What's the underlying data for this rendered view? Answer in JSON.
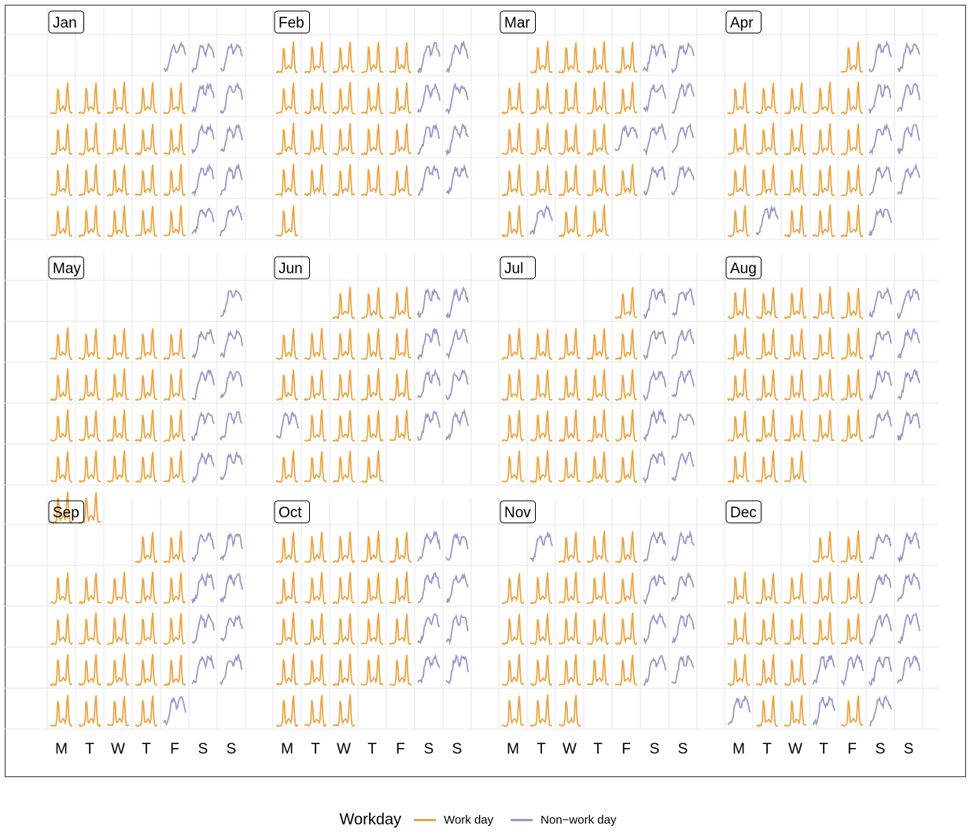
{
  "chart_data": {
    "type": "line",
    "title": "",
    "xlabel": "",
    "ylabel": "",
    "weekday_labels": [
      "M",
      "T",
      "W",
      "T",
      "F",
      "S",
      "S"
    ],
    "legend": {
      "title": "Workday",
      "position": "bottom",
      "entries": [
        {
          "label": "Work day",
          "color": "#EBA443"
        },
        {
          "label": "Non−work day",
          "color": "#9D96C8"
        }
      ]
    },
    "grid": true,
    "months": [
      {
        "name": "Jan",
        "first_weekday": 4,
        "days": 31,
        "nonwork_days": [
          1
        ]
      },
      {
        "name": "Feb",
        "first_weekday": 0,
        "days": 29,
        "nonwork_days": []
      },
      {
        "name": "Mar",
        "first_weekday": 1,
        "days": 31,
        "nonwork_days": [
          18,
          29
        ]
      },
      {
        "name": "Apr",
        "first_weekday": 4,
        "days": 30,
        "nonwork_days": [
          26
        ]
      },
      {
        "name": "May",
        "first_weekday": 6,
        "days": 31,
        "nonwork_days": []
      },
      {
        "name": "Jun",
        "first_weekday": 2,
        "days": 30,
        "nonwork_days": [
          20
        ]
      },
      {
        "name": "Jul",
        "first_weekday": 4,
        "days": 31,
        "nonwork_days": []
      },
      {
        "name": "Aug",
        "first_weekday": 0,
        "days": 31,
        "nonwork_days": []
      },
      {
        "name": "Sep",
        "first_weekday": 3,
        "days": 30,
        "nonwork_days": [
          30
        ]
      },
      {
        "name": "Oct",
        "first_weekday": 0,
        "days": 31,
        "nonwork_days": []
      },
      {
        "name": "Nov",
        "first_weekday": 1,
        "days": 30,
        "nonwork_days": [
          1
        ]
      },
      {
        "name": "Dec",
        "first_weekday": 3,
        "days": 31,
        "nonwork_days": [
          22,
          23,
          24,
          25,
          26,
          29
        ]
      }
    ]
  }
}
